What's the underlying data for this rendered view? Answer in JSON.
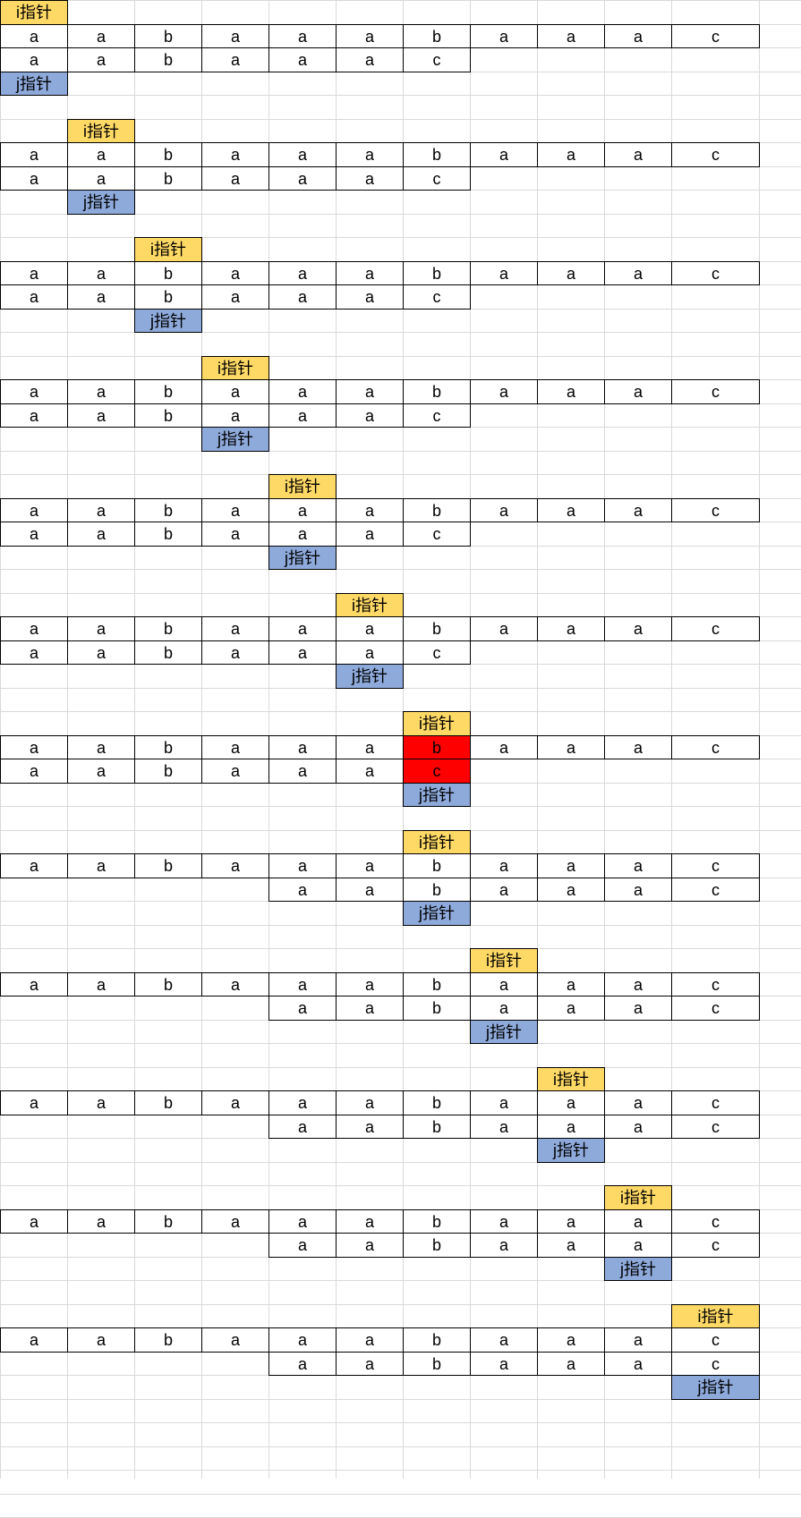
{
  "colors": {
    "i_pointer": "#ffd966",
    "j_pointer": "#8eaadb",
    "mismatch": "#ff0000",
    "gridline": "#d9d9d9"
  },
  "labels": {
    "i_pointer": "i指针",
    "j_pointer": "j指针"
  },
  "text": [
    "a",
    "a",
    "b",
    "a",
    "a",
    "a",
    "b",
    "a",
    "a",
    "a",
    "c"
  ],
  "pattern": [
    "a",
    "a",
    "b",
    "a",
    "a",
    "a",
    "c"
  ],
  "steps": [
    {
      "i": 0,
      "j": 0,
      "pattern_offset": 0,
      "mismatch": false
    },
    {
      "i": 1,
      "j": 1,
      "pattern_offset": 0,
      "mismatch": false
    },
    {
      "i": 2,
      "j": 2,
      "pattern_offset": 0,
      "mismatch": false
    },
    {
      "i": 3,
      "j": 3,
      "pattern_offset": 0,
      "mismatch": false
    },
    {
      "i": 4,
      "j": 4,
      "pattern_offset": 0,
      "mismatch": false
    },
    {
      "i": 5,
      "j": 5,
      "pattern_offset": 0,
      "mismatch": false
    },
    {
      "i": 6,
      "j": 6,
      "pattern_offset": 0,
      "mismatch": true
    },
    {
      "i": 6,
      "j": 2,
      "pattern_offset": 4,
      "mismatch": false
    },
    {
      "i": 7,
      "j": 3,
      "pattern_offset": 4,
      "mismatch": false
    },
    {
      "i": 8,
      "j": 4,
      "pattern_offset": 4,
      "mismatch": false
    },
    {
      "i": 9,
      "j": 5,
      "pattern_offset": 4,
      "mismatch": false
    },
    {
      "i": 10,
      "j": 6,
      "pattern_offset": 4,
      "mismatch": false
    }
  ]
}
